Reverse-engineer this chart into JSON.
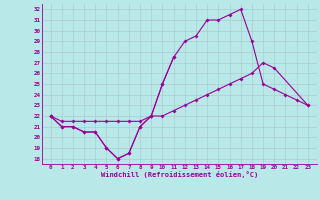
{
  "xlabel": "Windchill (Refroidissement éolien,°C)",
  "bg_color": "#b8e8e8",
  "line_color": "#990099",
  "x": [
    0,
    1,
    2,
    3,
    4,
    5,
    6,
    7,
    8,
    9,
    10,
    11,
    12,
    13,
    14,
    15,
    16,
    17,
    18,
    19,
    20,
    21,
    22,
    23
  ],
  "line1_x": [
    0,
    1,
    2,
    3,
    4,
    5,
    6,
    7,
    8,
    9,
    10,
    11
  ],
  "line1_y": [
    22,
    21,
    21,
    20.5,
    20.5,
    19,
    18,
    18.5,
    21,
    22,
    25,
    27.5
  ],
  "line2_x": [
    0,
    1,
    2,
    3,
    4,
    5,
    6,
    7,
    8,
    9,
    10,
    11,
    12,
    13,
    14,
    15,
    16,
    17,
    18,
    19,
    20,
    21,
    22,
    23
  ],
  "line2_y": [
    22,
    21,
    21,
    20.5,
    20.5,
    19,
    18,
    18.5,
    21,
    22,
    25,
    27.5,
    29,
    29.5,
    31,
    31,
    31.5,
    32,
    29,
    25,
    24.5,
    24,
    23.5,
    23
  ],
  "line3_x": [
    0,
    1,
    2,
    3,
    4,
    5,
    6,
    7,
    8,
    9,
    10,
    11,
    12,
    13,
    14,
    15,
    16,
    17,
    18,
    19,
    20,
    23
  ],
  "line3_y": [
    22,
    21.5,
    21.5,
    21.5,
    21.5,
    21.5,
    21.5,
    21.5,
    21.5,
    22,
    22,
    22.5,
    23,
    23.5,
    24,
    24.5,
    25,
    25.5,
    26,
    27,
    26.5,
    23
  ],
  "ylim": [
    17.5,
    32.5
  ],
  "ytick_vals": [
    18,
    19,
    20,
    21,
    22,
    23,
    24,
    25,
    26,
    27,
    28,
    29,
    30,
    31,
    32
  ],
  "xtick_vals": [
    0,
    1,
    2,
    3,
    4,
    5,
    6,
    7,
    8,
    9,
    10,
    11,
    12,
    13,
    14,
    15,
    16,
    17,
    18,
    19,
    20,
    21,
    22,
    23
  ],
  "grid_color": "#aacccc",
  "markersize": 2.0,
  "linewidth": 0.8
}
